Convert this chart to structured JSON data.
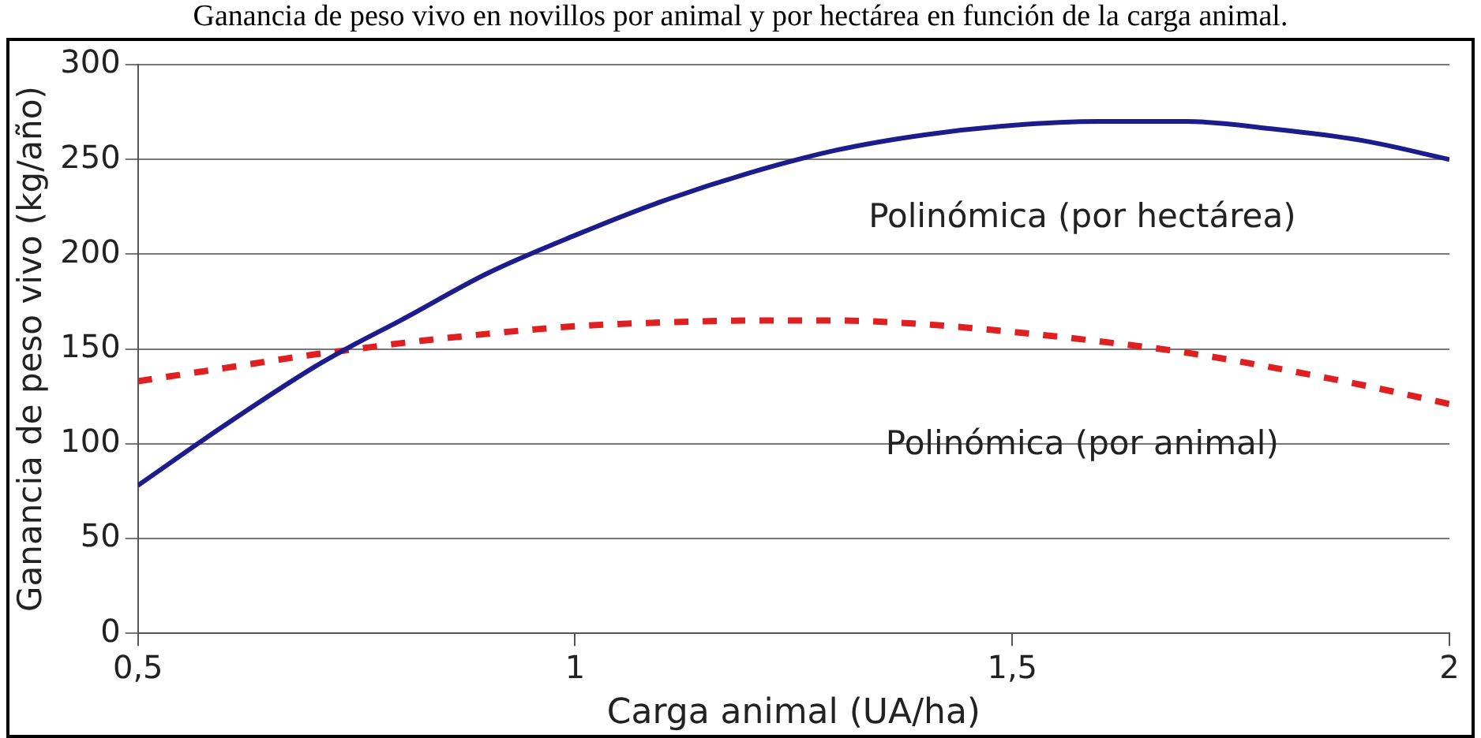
{
  "chart_data": {
    "type": "line",
    "title": "Ganancia de peso vivo en novillos por animal y por hectárea en función de la carga animal.",
    "xlabel": "Carga animal (UA/ha)",
    "ylabel": "Ganancia de peso vivo (kg/año)",
    "x": [
      0.5,
      0.6,
      0.7,
      0.75,
      0.8,
      0.9,
      1.0,
      1.1,
      1.2,
      1.3,
      1.4,
      1.5,
      1.6,
      1.7,
      1.8,
      1.9,
      2.0
    ],
    "series": [
      {
        "name": "Polinómica (por hectárea)",
        "color": "#1c1c8c",
        "line_style": "solid",
        "values": [
          78,
          110,
          140,
          153,
          165,
          190,
          210,
          228,
          243,
          255,
          263,
          268,
          270,
          270,
          266,
          260,
          250
        ]
      },
      {
        "name": "Polinómica (por animal)",
        "color": "#e02020",
        "line_style": "dashed",
        "values": [
          133,
          140,
          147,
          150,
          153,
          158,
          162,
          164,
          165,
          165,
          163,
          159,
          154,
          148,
          140,
          131,
          121
        ]
      }
    ],
    "xlim": [
      0.5,
      2
    ],
    "xticks": [
      {
        "value": 0.5,
        "label": "0,5"
      },
      1,
      {
        "value": 1.5,
        "label": "1,5"
      },
      2
    ],
    "ylim": [
      0,
      300
    ],
    "yticks": [
      0,
      50,
      100,
      150,
      200,
      250,
      300
    ],
    "grid": "y",
    "legend": false,
    "marker": "none"
  }
}
